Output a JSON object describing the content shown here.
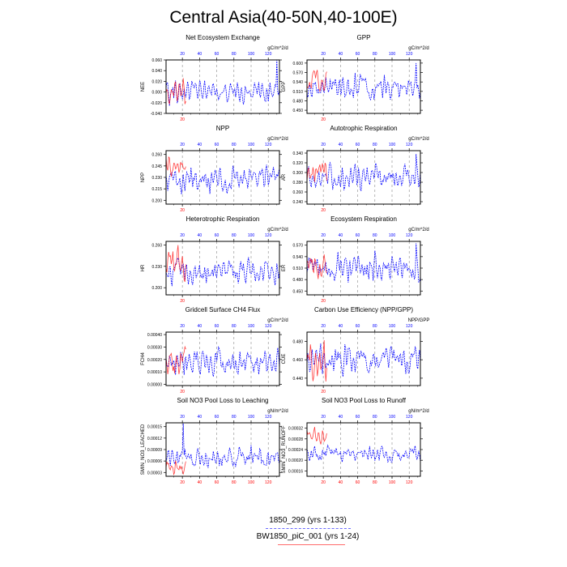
{
  "title": "Central Asia(40-50N,40-100E)",
  "legend": [
    {
      "label": "1850_299 (yrs 1-133)",
      "color": "#0000ff",
      "style": "dashed"
    },
    {
      "label": "BW1850_piC_001 (yrs 1-24)",
      "color": "#ff0000",
      "style": "solid"
    }
  ],
  "colors": {
    "top_axis": "#0000ff",
    "bottom_axis": "#ff0000"
  },
  "chart_data": [
    {
      "type": "line",
      "title": "Net Ecosystem Exchange",
      "units": "gC/m^2/d",
      "ylabel": "NEE",
      "yticks": [
        "0.060",
        "0.040",
        "0.020",
        "0.000",
        "-0.020",
        "-0.040"
      ],
      "ylim": [
        -0.04,
        0.06
      ],
      "top_xticks": [
        "20",
        "40",
        "60",
        "80",
        "100",
        "120"
      ],
      "bottom_xticks": [
        "20"
      ],
      "series": [
        {
          "name": "1850_299",
          "x": [
            1,
            133
          ],
          "base": 0.0,
          "amp": 0.014,
          "seed": 11,
          "spike": [
            130,
            0.06
          ]
        },
        {
          "name": "BW1850_piC_001",
          "x": [
            1,
            24
          ],
          "base": 0.005,
          "amp": 0.02,
          "seed": 12
        }
      ]
    },
    {
      "type": "line",
      "title": "GPP",
      "units": "gC/m^2/d",
      "ylabel": "GPP",
      "yticks": [
        "0.600",
        "0.570",
        "0.540",
        "0.510",
        "0.480",
        "0.450"
      ],
      "ylim": [
        0.44,
        0.61
      ],
      "top_xticks": [
        "20",
        "40",
        "60",
        "80",
        "100",
        "120"
      ],
      "bottom_xticks": [
        "20"
      ],
      "series": [
        {
          "name": "1850_299",
          "x": [
            1,
            133
          ],
          "base": 0.525,
          "amp": 0.025,
          "seed": 21,
          "spike": [
            128,
            0.6
          ]
        },
        {
          "name": "BW1850_piC_001",
          "x": [
            1,
            24
          ],
          "base": 0.545,
          "amp": 0.025,
          "seed": 22
        }
      ]
    },
    {
      "type": "line",
      "title": "NPP",
      "units": "gC/m^2/d",
      "ylabel": "NPP",
      "yticks": [
        "0.260",
        "0.245",
        "0.230",
        "0.215",
        "0.200"
      ],
      "ylim": [
        0.195,
        0.265
      ],
      "top_xticks": [
        "20",
        "40",
        "60",
        "80",
        "100",
        "120"
      ],
      "bottom_xticks": [
        "20"
      ],
      "series": [
        {
          "name": "1850_299",
          "x": [
            1,
            133
          ],
          "base": 0.229,
          "amp": 0.011,
          "seed": 31
        },
        {
          "name": "BW1850_piC_001",
          "x": [
            1,
            24
          ],
          "base": 0.247,
          "amp": 0.011,
          "seed": 32
        }
      ]
    },
    {
      "type": "line",
      "title": "Autotrophic Respiration",
      "units": "gC/m^2/d",
      "ylabel": "AR",
      "yticks": [
        "0.340",
        "0.320",
        "0.300",
        "0.280",
        "0.260",
        "0.240"
      ],
      "ylim": [
        0.235,
        0.345
      ],
      "top_xticks": [
        "20",
        "40",
        "60",
        "80",
        "100",
        "120"
      ],
      "bottom_xticks": [
        "20"
      ],
      "series": [
        {
          "name": "1850_299",
          "x": [
            1,
            133
          ],
          "base": 0.29,
          "amp": 0.016,
          "seed": 41,
          "spike": [
            128,
            0.338
          ]
        },
        {
          "name": "BW1850_piC_001",
          "x": [
            1,
            24
          ],
          "base": 0.3,
          "amp": 0.016,
          "seed": 42
        }
      ]
    },
    {
      "type": "line",
      "title": "Heterotrophic Respiration",
      "units": "gC/m^2/d",
      "ylabel": "HR",
      "yticks": [
        "0.260",
        "0.230",
        "0.200"
      ],
      "ylim": [
        0.19,
        0.265
      ],
      "top_xticks": [
        "20",
        "40",
        "60",
        "80",
        "100",
        "120"
      ],
      "bottom_xticks": [
        "20"
      ],
      "series": [
        {
          "name": "1850_299",
          "x": [
            1,
            133
          ],
          "base": 0.222,
          "amp": 0.012,
          "seed": 51
        },
        {
          "name": "BW1850_piC_001",
          "x": [
            1,
            24
          ],
          "base": 0.23,
          "amp": 0.017,
          "seed": 52
        }
      ]
    },
    {
      "type": "line",
      "title": "Ecosystem Respiration",
      "units": "gC/m^2/d",
      "ylabel": "ER",
      "yticks": [
        "0.570",
        "0.540",
        "0.510",
        "0.480",
        "0.450"
      ],
      "ylim": [
        0.44,
        0.58
      ],
      "top_xticks": [
        "20",
        "40",
        "60",
        "80",
        "100",
        "120"
      ],
      "bottom_xticks": [
        "20"
      ],
      "series": [
        {
          "name": "1850_299",
          "x": [
            1,
            133
          ],
          "base": 0.51,
          "amp": 0.024,
          "seed": 61,
          "spike": [
            128,
            0.575
          ]
        },
        {
          "name": "BW1850_piC_001",
          "x": [
            1,
            24
          ],
          "base": 0.515,
          "amp": 0.024,
          "seed": 62
        }
      ]
    },
    {
      "type": "line",
      "title": "Gridcell Surface CH4 Flux",
      "units": "gC/m^2/d",
      "ylabel": "FCH4",
      "yticks": [
        "0.00040",
        "0.00030",
        "0.00020",
        "0.00010",
        "0.00000"
      ],
      "ylim": [
        -1e-05,
        0.00042
      ],
      "top_xticks": [
        "20",
        "40",
        "60",
        "80",
        "100",
        "120"
      ],
      "bottom_xticks": [
        "20"
      ],
      "series": [
        {
          "name": "1850_299",
          "x": [
            1,
            133
          ],
          "base": 0.00019,
          "amp": 7e-05,
          "seed": 71
        },
        {
          "name": "BW1850_piC_001",
          "x": [
            1,
            24
          ],
          "base": 0.00018,
          "amp": 9e-05,
          "seed": 72
        }
      ]
    },
    {
      "type": "line",
      "title": "Carbon Use Efficiency (NPP/GPP)",
      "units": "NPP/GPP",
      "ylabel": "CUE",
      "yticks": [
        "0.480",
        "0.460",
        "0.440"
      ],
      "ylim": [
        0.432,
        0.49
      ],
      "top_xticks": [
        "20",
        "40",
        "60",
        "80",
        "100",
        "120"
      ],
      "bottom_xticks": [
        "20"
      ],
      "series": [
        {
          "name": "1850_299",
          "x": [
            1,
            133
          ],
          "base": 0.46,
          "amp": 0.01,
          "seed": 81
        },
        {
          "name": "BW1850_piC_001",
          "x": [
            1,
            24
          ],
          "base": 0.458,
          "amp": 0.014,
          "seed": 82
        }
      ]
    },
    {
      "type": "line",
      "title": "Soil NO3 Pool Loss to Leaching",
      "units": "gN/m^2/d",
      "ylabel": "SMIN_NO3_LEACHED",
      "yticks": [
        "0.00015",
        "0.00012",
        "0.00009",
        "0.00006",
        "0.00003"
      ],
      "ylim": [
        2e-05,
        0.00016
      ],
      "top_xticks": [
        "20",
        "40",
        "60",
        "80",
        "100",
        "120"
      ],
      "bottom_xticks": [
        "20",
        "40",
        "60",
        "80",
        "100",
        "120"
      ],
      "series": [
        {
          "name": "1850_299",
          "x": [
            1,
            133
          ],
          "base": 6.8e-05,
          "amp": 1.8e-05,
          "seed": 91,
          "spike": [
            21,
            0.000158
          ]
        },
        {
          "name": "BW1850_piC_001",
          "x": [
            1,
            24
          ],
          "base": 4.5e-05,
          "amp": 1.5e-05,
          "seed": 92
        }
      ]
    },
    {
      "type": "line",
      "title": "Soil NO3 Pool Loss to Runoff",
      "units": "gN/m^2/d",
      "ylabel": "SMIN_NO3_RUNOFF",
      "yticks": [
        "0.00032",
        "0.00028",
        "0.00024",
        "0.00020",
        "0.00016"
      ],
      "ylim": [
        0.00014,
        0.00034
      ],
      "top_xticks": [
        "20",
        "40",
        "60",
        "80",
        "100",
        "120"
      ],
      "bottom_xticks": [
        "20",
        "40",
        "60",
        "80",
        "100",
        "120"
      ],
      "series": [
        {
          "name": "1850_299",
          "x": [
            1,
            133
          ],
          "base": 0.000225,
          "amp": 2e-05,
          "seed": 101
        },
        {
          "name": "BW1850_piC_001",
          "x": [
            1,
            24
          ],
          "base": 0.000295,
          "amp": 2e-05,
          "seed": 102
        }
      ]
    }
  ]
}
